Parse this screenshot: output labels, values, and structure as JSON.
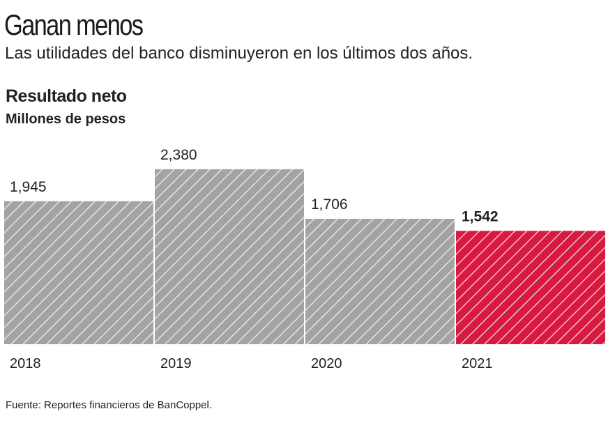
{
  "header": {
    "title": "Ganan menos",
    "subtitle": "Las utilidades del banco disminuyeron en los últimos dos años."
  },
  "chart_data": {
    "type": "bar",
    "title": "Resultado neto",
    "ylabel": "Millones de pesos",
    "categories": [
      "2018",
      "2019",
      "2020",
      "2021"
    ],
    "values": [
      1945,
      2380,
      1706,
      1542
    ],
    "labels": [
      "1,945",
      "2,380",
      "1,706",
      "1,542"
    ],
    "highlight_index": 3,
    "colors": {
      "default": "#a3a3a3",
      "highlight": "#d81a40",
      "stripe": "#ffffff"
    },
    "grid": false
  },
  "footer": {
    "source": "Fuente: Reportes financieros de BanCoppel."
  }
}
